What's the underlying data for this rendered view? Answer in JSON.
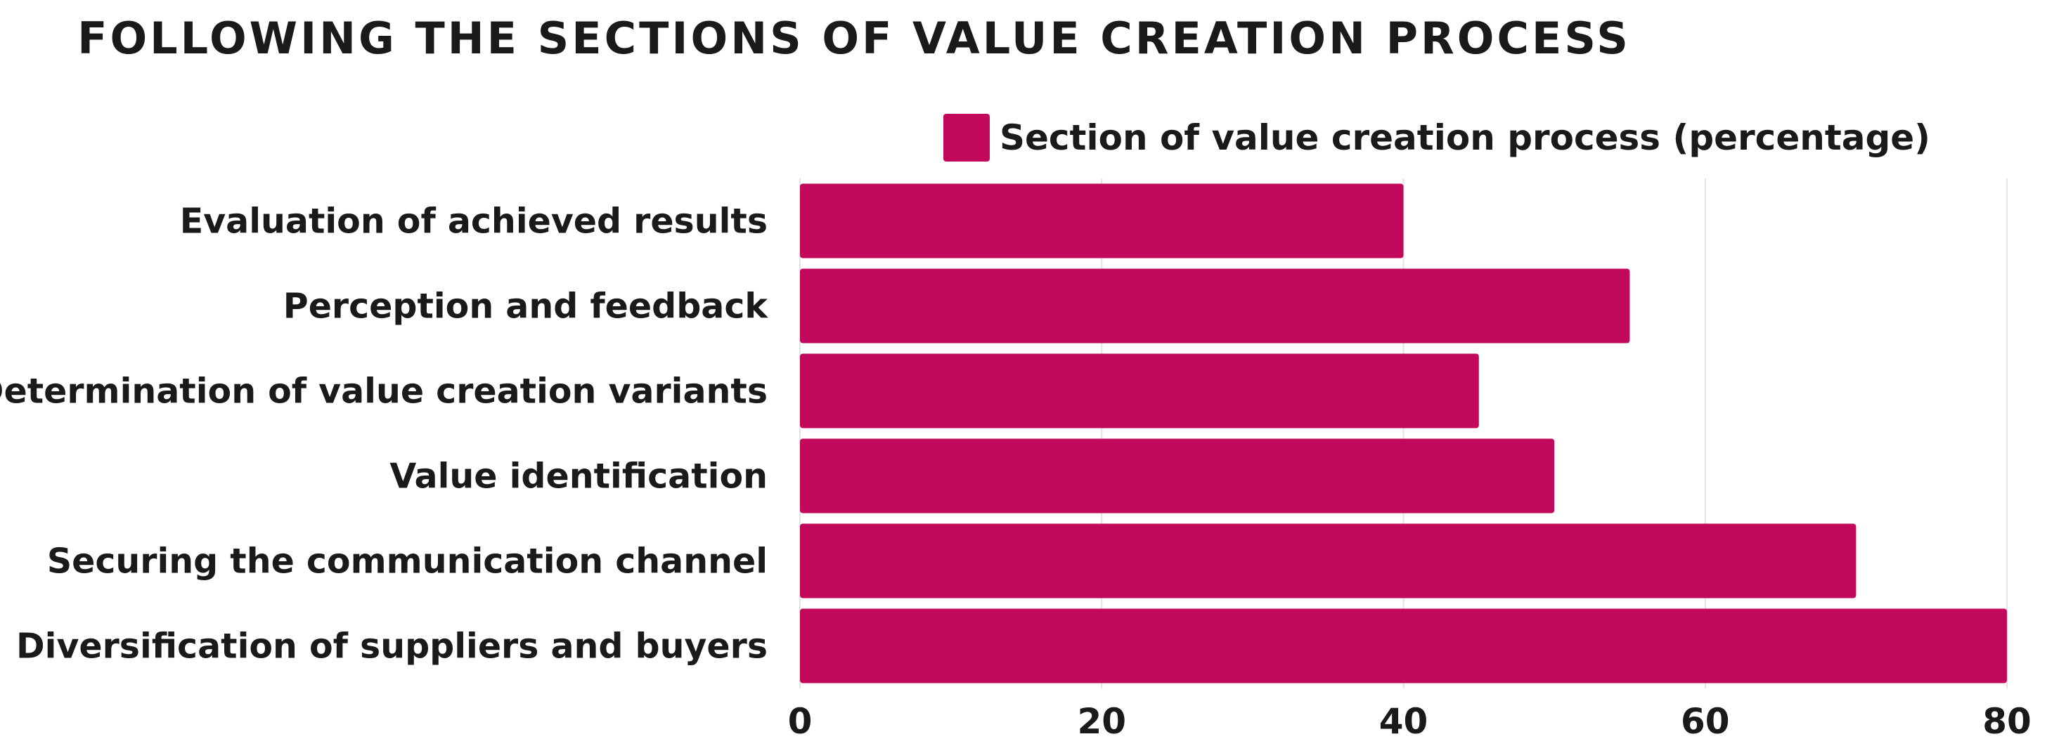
{
  "chart_data": {
    "type": "bar",
    "orientation": "horizontal",
    "title": "FOLLOWING THE SECTIONS OF VALUE CREATION PROCESS",
    "xlabel": "",
    "ylabel": "",
    "categories": [
      "Evaluation of achieved results",
      "Perception and feedback",
      "Determination of value creation variants",
      "Value identification",
      "Securing the communication channel",
      "Diversification of suppliers and buyers"
    ],
    "series": [
      {
        "name": "Section of value creation process (percentage)",
        "values": [
          40,
          55,
          45,
          50,
          70,
          80
        ],
        "color": "#c2085a"
      }
    ],
    "xlim": [
      0,
      80
    ],
    "xticks": [
      "0",
      "20",
      "40",
      "60",
      "80"
    ],
    "grid": true,
    "legend_position": "top"
  }
}
